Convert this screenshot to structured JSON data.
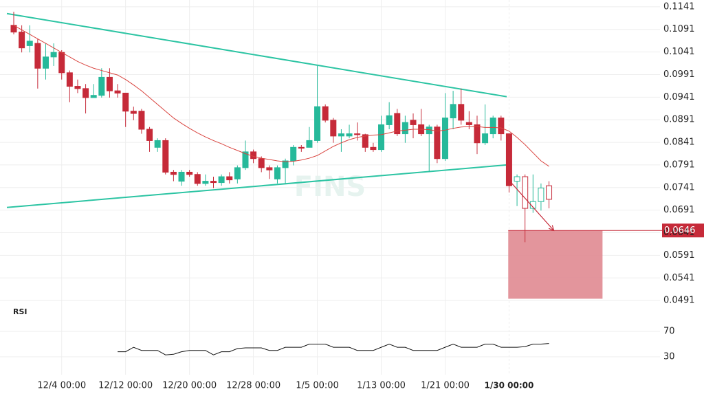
{
  "chart_data": {
    "type": "candlestick",
    "ylim": [
      0.0476,
      0.1156
    ],
    "yticks": [
      0.1141,
      0.1091,
      0.1041,
      0.0991,
      0.0941,
      0.0891,
      0.0841,
      0.0791,
      0.0741,
      0.0691,
      0.0641,
      0.0591,
      0.0541,
      0.0491
    ],
    "xticks": [
      {
        "value": 6,
        "label": "12/4 00:00"
      },
      {
        "value": 14,
        "label": "12/12 00:00"
      },
      {
        "value": 22,
        "label": "12/20 00:00"
      },
      {
        "value": 30,
        "label": "12/28 00:00"
      },
      {
        "value": 38,
        "label": "1/5 00:00"
      },
      {
        "value": 46,
        "label": "1/13 00:00"
      },
      {
        "value": 54,
        "label": "1/21 00:00"
      },
      {
        "value": 62,
        "label": "1/30 00:00"
      }
    ],
    "crosshair_tick": 7,
    "up_color": "#26b99a",
    "down_color": "#c62a39",
    "projected_from": 63,
    "open": [
      0.11,
      0.1085,
      0.1055,
      0.106,
      0.1005,
      0.103,
      0.104,
      0.0995,
      0.0965,
      0.096,
      0.094,
      0.0945,
      0.0985,
      0.0955,
      0.095,
      0.091,
      0.091,
      0.087,
      0.083,
      0.0845,
      0.0775,
      0.0755,
      0.0775,
      0.077,
      0.075,
      0.0755,
      0.0752,
      0.0765,
      0.076,
      0.0785,
      0.082,
      0.0805,
      0.0785,
      0.076,
      0.0785,
      0.08,
      0.083,
      0.083,
      0.0845,
      0.092,
      0.089,
      0.0855,
      0.0855,
      0.086,
      0.0858,
      0.083,
      0.0825,
      0.088,
      0.0905,
      0.086,
      0.089,
      0.088,
      0.086,
      0.0875,
      0.0805,
      0.0895,
      0.0925,
      0.0885,
      0.088,
      0.084,
      0.086,
      0.0895,
      0.086,
      0.0755,
      0.0765,
      0.0695,
      0.071,
      0.0745
    ],
    "high": [
      0.113,
      0.11,
      0.11,
      0.107,
      0.106,
      0.106,
      0.1045,
      0.1,
      0.098,
      0.097,
      0.097,
      0.1005,
      0.1005,
      0.097,
      0.095,
      0.092,
      0.0915,
      0.0875,
      0.085,
      0.085,
      0.078,
      0.078,
      0.078,
      0.0775,
      0.077,
      0.0765,
      0.077,
      0.0775,
      0.079,
      0.0845,
      0.0825,
      0.081,
      0.079,
      0.079,
      0.0805,
      0.0835,
      0.0835,
      0.0875,
      0.101,
      0.0925,
      0.0895,
      0.087,
      0.088,
      0.0885,
      0.086,
      0.084,
      0.09,
      0.093,
      0.0915,
      0.09,
      0.0905,
      0.0915,
      0.088,
      0.088,
      0.095,
      0.0955,
      0.096,
      0.091,
      0.09,
      0.0925,
      0.09,
      0.09,
      0.086,
      0.077,
      0.077,
      0.077,
      0.075,
      0.0755
    ],
    "low": [
      0.108,
      0.104,
      0.104,
      0.096,
      0.098,
      0.101,
      0.098,
      0.093,
      0.095,
      0.0905,
      0.094,
      0.094,
      0.094,
      0.094,
      0.0875,
      0.089,
      0.086,
      0.082,
      0.082,
      0.077,
      0.0755,
      0.0745,
      0.0765,
      0.0745,
      0.0745,
      0.074,
      0.0745,
      0.075,
      0.075,
      0.078,
      0.0795,
      0.0775,
      0.076,
      0.075,
      0.075,
      0.079,
      0.082,
      0.083,
      0.084,
      0.0885,
      0.084,
      0.082,
      0.085,
      0.0845,
      0.082,
      0.082,
      0.082,
      0.087,
      0.0855,
      0.084,
      0.085,
      0.0855,
      0.0775,
      0.0795,
      0.08,
      0.087,
      0.088,
      0.087,
      0.0815,
      0.0835,
      0.085,
      0.0845,
      0.073,
      0.07,
      0.062,
      0.0685,
      0.069,
      0.0695
    ],
    "close": [
      0.1085,
      0.105,
      0.1065,
      0.1005,
      0.103,
      0.104,
      0.0995,
      0.0965,
      0.096,
      0.094,
      0.0945,
      0.0985,
      0.0955,
      0.095,
      0.091,
      0.0905,
      0.087,
      0.0845,
      0.0845,
      0.0775,
      0.077,
      0.0775,
      0.077,
      0.075,
      0.0755,
      0.0752,
      0.0765,
      0.0758,
      0.0785,
      0.082,
      0.0805,
      0.0785,
      0.078,
      0.0785,
      0.08,
      0.083,
      0.0828,
      0.0845,
      0.092,
      0.089,
      0.0855,
      0.086,
      0.086,
      0.0858,
      0.083,
      0.0825,
      0.088,
      0.09,
      0.086,
      0.0885,
      0.088,
      0.086,
      0.0875,
      0.0805,
      0.0895,
      0.0925,
      0.089,
      0.088,
      0.084,
      0.086,
      0.0895,
      0.086,
      0.0745,
      0.0765,
      0.0695,
      0.071,
      0.074,
      0.0715
    ],
    "ma": {
      "color": "#d9443f",
      "values": [
        0.11,
        0.109,
        0.108,
        0.107,
        0.106,
        0.105,
        0.104,
        0.103,
        0.102,
        0.1012,
        0.1005,
        0.1,
        0.0995,
        0.099,
        0.098,
        0.0968,
        0.0955,
        0.094,
        0.0925,
        0.091,
        0.0895,
        0.0883,
        0.0872,
        0.0862,
        0.0853,
        0.0845,
        0.0838,
        0.083,
        0.0823,
        0.0816,
        0.081,
        0.0806,
        0.0803,
        0.08,
        0.0798,
        0.0799,
        0.0802,
        0.0806,
        0.0812,
        0.0822,
        0.0832,
        0.084,
        0.0847,
        0.0852,
        0.0855,
        0.0857,
        0.0858,
        0.0862,
        0.0866,
        0.0868,
        0.087,
        0.087,
        0.0869,
        0.0866,
        0.0868,
        0.0872,
        0.0875,
        0.0876,
        0.0876,
        0.0874,
        0.0874,
        0.0873,
        0.0866,
        0.0852,
        0.0836,
        0.0818,
        0.08,
        0.0788
      ]
    },
    "trendlines": [
      {
        "color": "#2cc4a3",
        "x": [
          -0.86,
          61.7
        ],
        "values": [
          0.1126,
          0.0942
        ]
      },
      {
        "color": "#2cc4a3",
        "x": [
          -0.86,
          61.7
        ],
        "values": [
          0.0697,
          0.0791
        ]
      }
    ],
    "zone": {
      "color": "#e08a91",
      "x": [
        61.9,
        73.7
      ],
      "values": [
        0.0646,
        0.0495
      ]
    },
    "arrow": {
      "color": "#c62a39",
      "x": [
        62,
        67.6
      ],
      "values": [
        0.0757,
        0.0646
      ]
    },
    "last_price": 0.0646,
    "watermark": "FINS",
    "rsi": {
      "label": "RSI",
      "color": "#111111",
      "ylim": [
        10,
        90
      ],
      "yticks": [
        70,
        30
      ],
      "values": [
        null,
        null,
        null,
        null,
        null,
        null,
        null,
        null,
        null,
        null,
        null,
        null,
        null,
        38,
        38,
        45,
        40,
        40,
        40,
        33,
        34,
        38,
        40,
        40,
        40,
        33,
        38,
        38,
        43,
        44,
        44,
        44,
        40,
        40,
        45,
        45,
        45,
        50,
        50,
        50,
        45,
        45,
        45,
        40,
        40,
        40,
        45,
        50,
        45,
        45,
        40,
        40,
        40,
        40,
        45,
        50,
        45,
        45,
        45,
        50,
        50,
        45,
        45,
        45,
        46,
        50,
        50,
        51
      ]
    }
  }
}
